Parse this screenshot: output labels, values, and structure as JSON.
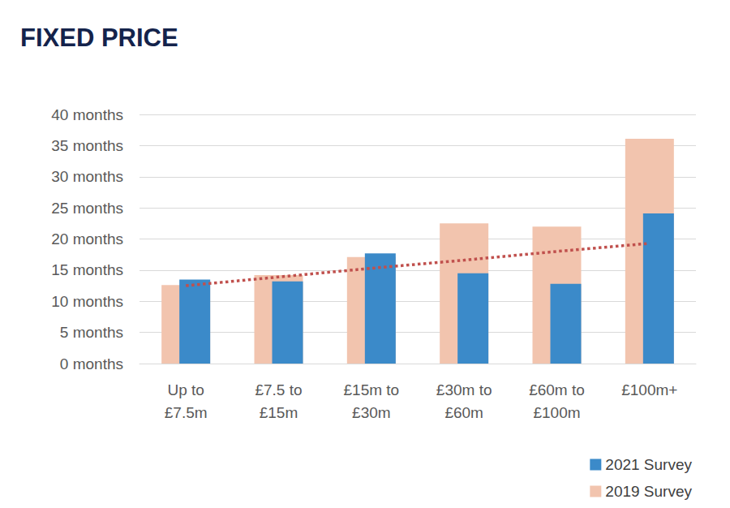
{
  "chart_data": {
    "type": "bar",
    "title": "FIXED PRICE",
    "categories": [
      "Up to\n£7.5m",
      "£7.5 to\n£15m",
      "£15m to\n£30m",
      "£30m to\n£60m",
      "£60m to\n£100m",
      "£100m+"
    ],
    "series": [
      {
        "name": "2021 Survey",
        "color": "#3b8ac9",
        "values": [
          13.5,
          13.2,
          17.7,
          14.5,
          12.8,
          24.1
        ]
      },
      {
        "name": "2019 Survey",
        "color": "#f2c4ae",
        "values": [
          12.6,
          14.2,
          17.1,
          22.5,
          22.0,
          36.1
        ]
      }
    ],
    "trendline": {
      "color": "#c0504d",
      "line_style": "dotted",
      "values": [
        12.5,
        13.9,
        15.3,
        16.6,
        18.0,
        19.3
      ]
    },
    "ylim": [
      0,
      40
    ],
    "yticks": [
      {
        "value": 0,
        "label": "0 months"
      },
      {
        "value": 5,
        "label": "5 months"
      },
      {
        "value": 10,
        "label": "10 months"
      },
      {
        "value": 15,
        "label": "15 months"
      },
      {
        "value": 20,
        "label": "20 months"
      },
      {
        "value": 25,
        "label": "25 months"
      },
      {
        "value": 30,
        "label": "30 months"
      },
      {
        "value": 35,
        "label": "35 months"
      },
      {
        "value": 40,
        "label": "40 months"
      }
    ],
    "grid": true,
    "legend": "bottom-right"
  }
}
